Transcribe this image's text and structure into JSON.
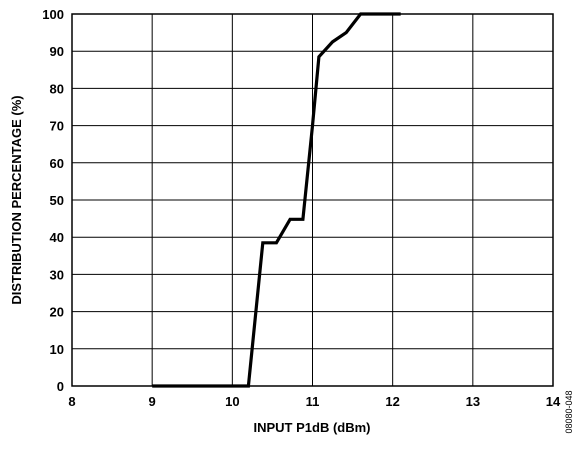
{
  "chart_data": {
    "type": "line",
    "title": "",
    "xlabel": "INPUT P1dB (dBm)",
    "ylabel": "DISTRIBUTION PERCENTAGE (%)",
    "xlim": [
      8,
      14
    ],
    "ylim": [
      0,
      100
    ],
    "x_ticks": [
      8,
      9,
      10,
      11,
      12,
      13,
      14
    ],
    "y_ticks": [
      0,
      10,
      20,
      30,
      40,
      50,
      60,
      70,
      80,
      90,
      100
    ],
    "grid": true,
    "series": [
      {
        "color": "#000000",
        "x": [
          9.0,
          10.0,
          10.2,
          10.38,
          10.55,
          10.72,
          10.88,
          11.0,
          11.08,
          11.25,
          11.42,
          11.6,
          11.8,
          12.1
        ],
        "y": [
          0,
          0,
          0,
          38.5,
          38.5,
          44.8,
          44.8,
          70,
          88.5,
          92.5,
          95,
          100,
          100,
          100
        ]
      }
    ]
  },
  "figure_id": "08080-048"
}
